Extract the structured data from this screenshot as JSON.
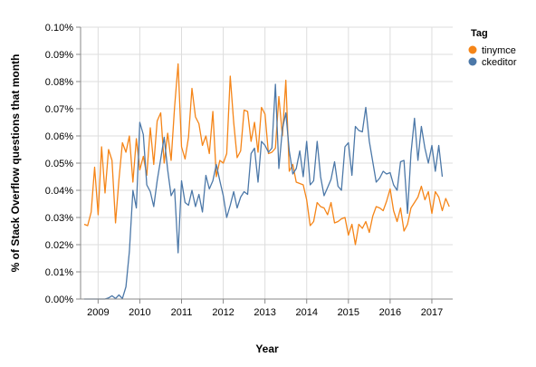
{
  "chart_data": {
    "type": "line",
    "title": "",
    "xlabel": "Year",
    "ylabel": "% of Stack Overflow questions that month",
    "xlim": [
      2008.58,
      2017.5
    ],
    "ylim": [
      0,
      0.1
    ],
    "x_ticks": [
      2009,
      2010,
      2011,
      2012,
      2013,
      2014,
      2015,
      2016,
      2017
    ],
    "x_tick_labels": [
      "2009",
      "2010",
      "2011",
      "2012",
      "2013",
      "2014",
      "2015",
      "2016",
      "2017"
    ],
    "y_ticks": [
      0,
      0.01,
      0.02,
      0.03,
      0.04,
      0.05,
      0.06,
      0.07,
      0.08,
      0.09,
      0.1
    ],
    "y_tick_labels": [
      "0.00%",
      "0.01%",
      "0.02%",
      "0.03%",
      "0.04%",
      "0.05%",
      "0.06%",
      "0.07%",
      "0.08%",
      "0.09%",
      "0.10%"
    ],
    "grid": true,
    "legend": {
      "title": "Tag",
      "position": "top-right"
    },
    "series": [
      {
        "name": "tinymce",
        "color": "#f58518",
        "start": 2008.667,
        "step": 0.08333,
        "values": [
          0.0275,
          0.027,
          0.032,
          0.0485,
          0.031,
          0.056,
          0.039,
          0.055,
          0.051,
          0.028,
          0.044,
          0.0575,
          0.054,
          0.06,
          0.043,
          0.059,
          0.0475,
          0.0525,
          0.0455,
          0.063,
          0.0495,
          0.0655,
          0.0685,
          0.05,
          0.061,
          0.051,
          0.0705,
          0.0865,
          0.056,
          0.0515,
          0.0595,
          0.0775,
          0.067,
          0.0645,
          0.0565,
          0.06,
          0.0535,
          0.069,
          0.045,
          0.051,
          0.05,
          0.0535,
          0.082,
          0.065,
          0.052,
          0.0545,
          0.0695,
          0.069,
          0.058,
          0.065,
          0.054,
          0.0705,
          0.068,
          0.0535,
          0.054,
          0.0555,
          0.0745,
          0.06,
          0.0805,
          0.047,
          0.0495,
          0.043,
          0.0425,
          0.042,
          0.0365,
          0.027,
          0.0285,
          0.0355,
          0.034,
          0.0335,
          0.031,
          0.0355,
          0.028,
          0.0285,
          0.0295,
          0.03,
          0.0235,
          0.0275,
          0.02,
          0.0275,
          0.026,
          0.0285,
          0.0245,
          0.0305,
          0.034,
          0.0335,
          0.0325,
          0.036,
          0.0405,
          0.0325,
          0.0285,
          0.0335,
          0.025,
          0.0275,
          0.0335,
          0.0355,
          0.0375,
          0.0415,
          0.0365,
          0.0395,
          0.0315,
          0.0395,
          0.0375,
          0.0325,
          0.037,
          0.034
        ]
      },
      {
        "name": "ckeditor",
        "color": "#4c78a8",
        "start": 2008.667,
        "step": 0.08333,
        "values": [
          0.0,
          0.0,
          0.0,
          0.0,
          0.0,
          0.0,
          0.0,
          0.0004,
          0.0012,
          0.0002,
          0.0015,
          0.0002,
          0.0045,
          0.0175,
          0.04,
          0.0335,
          0.065,
          0.0605,
          0.042,
          0.0395,
          0.034,
          0.0435,
          0.0515,
          0.0595,
          0.0475,
          0.038,
          0.0405,
          0.017,
          0.0435,
          0.0355,
          0.0345,
          0.04,
          0.034,
          0.0385,
          0.032,
          0.0455,
          0.0405,
          0.0435,
          0.0495,
          0.0435,
          0.038,
          0.03,
          0.0345,
          0.0395,
          0.0335,
          0.0375,
          0.0395,
          0.0385,
          0.0535,
          0.0555,
          0.043,
          0.058,
          0.0565,
          0.054,
          0.0555,
          0.079,
          0.048,
          0.0625,
          0.0685,
          0.0545,
          0.046,
          0.048,
          0.0545,
          0.045,
          0.058,
          0.042,
          0.0435,
          0.058,
          0.045,
          0.038,
          0.041,
          0.044,
          0.0505,
          0.0415,
          0.04,
          0.056,
          0.0575,
          0.0455,
          0.0635,
          0.062,
          0.0615,
          0.0705,
          0.058,
          0.0505,
          0.043,
          0.0445,
          0.047,
          0.046,
          0.0465,
          0.042,
          0.04,
          0.0505,
          0.051,
          0.0315,
          0.0535,
          0.0665,
          0.051,
          0.0635,
          0.0555,
          0.05,
          0.0565,
          0.047,
          0.0565,
          0.045
        ]
      }
    ]
  }
}
